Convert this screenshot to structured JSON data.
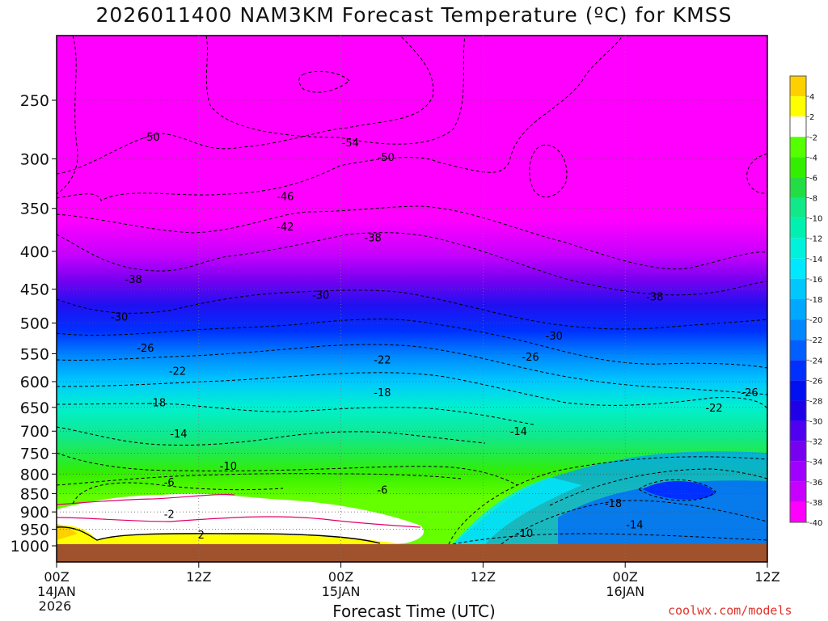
{
  "header": {
    "title": "2026011400 NAM3KM Forecast Temperature (ºC) for KMSS",
    "xlabel": "Forecast Time (UTC)",
    "credit": "coolwx.com/models"
  },
  "chart_data": {
    "type": "heatmap",
    "title": "2026011400 NAM3KM Forecast Temperature (ºC) for KMSS",
    "subtitle": "",
    "xlabel": "Forecast Time (UTC)",
    "ylabel": "",
    "y_scale": "log-pressure",
    "ylim": [
      1000,
      200
    ],
    "y_ticks": [
      250,
      300,
      350,
      400,
      450,
      500,
      550,
      600,
      650,
      700,
      750,
      800,
      850,
      900,
      950,
      1000
    ],
    "y_tick_labels": [
      "250",
      "300",
      "350",
      "400",
      "450",
      "500",
      "550",
      "600",
      "650",
      "700",
      "750",
      "800",
      "850",
      "900",
      "950",
      "1000"
    ],
    "xlim": [
      0,
      60
    ],
    "x_ticks": [
      {
        "hour": 0,
        "label": "00Z",
        "sub1": "14JAN",
        "sub2": "2026"
      },
      {
        "hour": 12,
        "label": "12Z",
        "sub1": "",
        "sub2": ""
      },
      {
        "hour": 24,
        "label": "00Z",
        "sub1": "15JAN",
        "sub2": ""
      },
      {
        "hour": 36,
        "label": "12Z",
        "sub1": "",
        "sub2": ""
      },
      {
        "hour": 48,
        "label": "00Z",
        "sub1": "16JAN",
        "sub2": ""
      },
      {
        "hour": 60,
        "label": "12Z",
        "sub1": "",
        "sub2": ""
      }
    ],
    "grid": true,
    "legend": "right colorbar",
    "colorbar": {
      "labels": [
        "4",
        "2",
        "-2",
        "-4",
        "-6",
        "-8",
        "-10",
        "-12",
        "-14",
        "-16",
        "-18",
        "-20",
        "-22",
        "-24",
        "-26",
        "-28",
        "-30",
        "-32",
        "-34",
        "-36",
        "-38",
        "-40"
      ],
      "colors": [
        "#ffd000",
        "#ffff00",
        "#ffffff",
        "#55ff00",
        "#33ee00",
        "#22dd44",
        "#11e888",
        "#00f0b0",
        "#00f2dd",
        "#00e8ff",
        "#00c8ff",
        "#00a8ff",
        "#0088ff",
        "#0060ff",
        "#0030ff",
        "#0010f0",
        "#2000e8",
        "#5000f0",
        "#7800f0",
        "#a000ff",
        "#c800ff",
        "#ff00ff"
      ]
    },
    "contours": [
      {
        "value": -54,
        "label": "-54",
        "x": 24.8,
        "p": 285
      },
      {
        "value": -50,
        "label": "-50",
        "x": 8.0,
        "p": 280
      },
      {
        "value": -50,
        "label": "-50",
        "x": 27.8,
        "p": 298
      },
      {
        "value": -46,
        "label": "-46",
        "x": 19.3,
        "p": 337
      },
      {
        "value": -42,
        "label": "-42",
        "x": 19.3,
        "p": 370
      },
      {
        "value": -38,
        "label": "-38",
        "x": 26.7,
        "p": 383
      },
      {
        "value": -38,
        "label": "-38",
        "x": 6.5,
        "p": 436
      },
      {
        "value": -38,
        "label": "-38",
        "x": 50.5,
        "p": 460
      },
      {
        "value": -30,
        "label": "-30",
        "x": 22.3,
        "p": 458
      },
      {
        "value": -30,
        "label": "-30",
        "x": 5.3,
        "p": 490
      },
      {
        "value": -30,
        "label": "-30",
        "x": 42.0,
        "p": 520
      },
      {
        "value": -26,
        "label": "-26",
        "x": 7.5,
        "p": 540
      },
      {
        "value": -26,
        "label": "-26",
        "x": 40.0,
        "p": 555
      },
      {
        "value": -26,
        "label": "-26",
        "x": 58.5,
        "p": 620
      },
      {
        "value": -22,
        "label": "-22",
        "x": 10.2,
        "p": 580
      },
      {
        "value": -22,
        "label": "-22",
        "x": 27.5,
        "p": 560
      },
      {
        "value": -22,
        "label": "-22",
        "x": 55.5,
        "p": 650
      },
      {
        "value": -18,
        "label": "-18",
        "x": 8.5,
        "p": 640
      },
      {
        "value": -18,
        "label": "-18",
        "x": 27.5,
        "p": 620
      },
      {
        "value": -18,
        "label": "-18",
        "x": 47.0,
        "p": 875
      },
      {
        "value": -14,
        "label": "-14",
        "x": 10.3,
        "p": 705
      },
      {
        "value": -14,
        "label": "-14",
        "x": 39.0,
        "p": 700
      },
      {
        "value": -14,
        "label": "-14",
        "x": 48.8,
        "p": 935
      },
      {
        "value": -10,
        "label": "-10",
        "x": 14.5,
        "p": 780
      },
      {
        "value": -10,
        "label": "-10",
        "x": 39.5,
        "p": 960
      },
      {
        "value": -6,
        "label": "-6",
        "x": 9.5,
        "p": 820
      },
      {
        "value": -6,
        "label": "-6",
        "x": 27.5,
        "p": 840
      },
      {
        "value": -2,
        "label": "-2",
        "x": 9.5,
        "p": 905
      },
      {
        "value": 2,
        "label": "2",
        "x": 12.2,
        "p": 965
      }
    ]
  }
}
